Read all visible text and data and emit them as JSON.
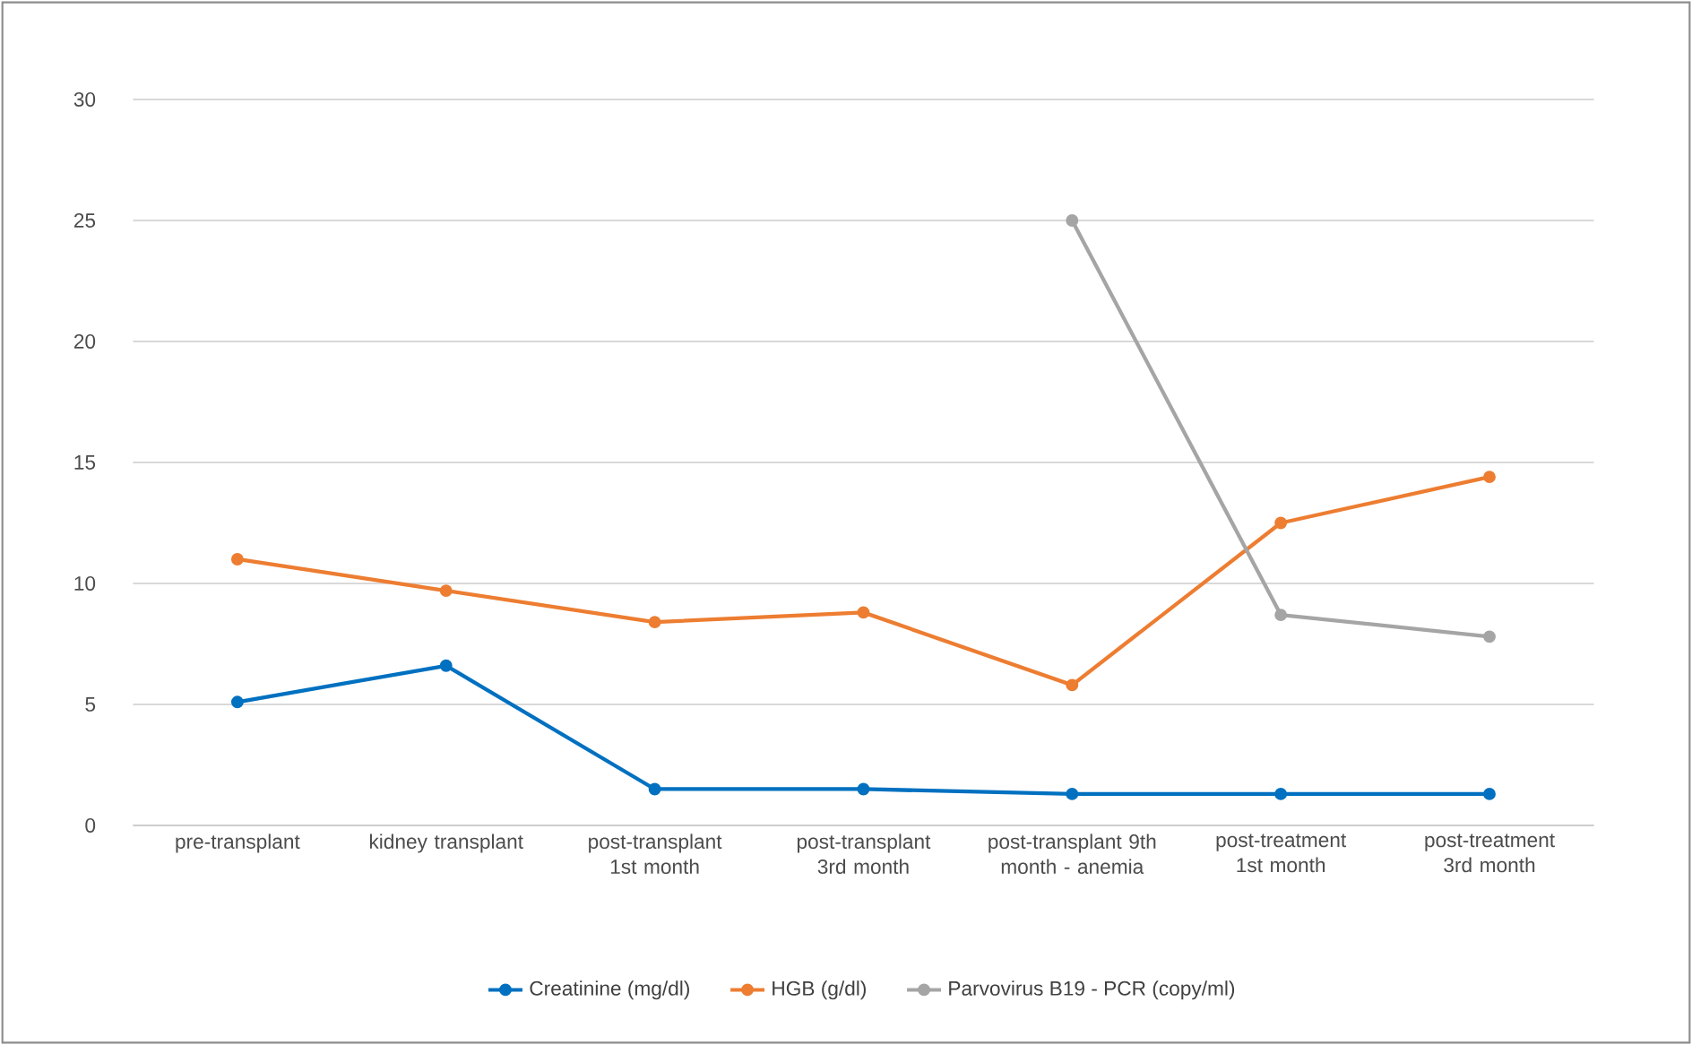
{
  "chart_data": {
    "type": "line",
    "categories": [
      "pre-transplant",
      "kidney transplant",
      "post-transplant 1st month",
      "post-transplant 3rd month",
      "post-transplant 9th month - anemia",
      "post-treatment 1st month",
      "post-treatment 3rd month"
    ],
    "series": [
      {
        "name": "Creatinine (mg/dl)",
        "color": "#0070c0",
        "values": [
          5.1,
          6.6,
          1.5,
          1.5,
          1.3,
          1.3,
          1.3
        ]
      },
      {
        "name": "HGB (g/dl)",
        "color": "#ed7d31",
        "values": [
          11.0,
          9.7,
          8.4,
          8.8,
          5.8,
          12.5,
          14.4
        ]
      },
      {
        "name": "Parvovirus B19 - PCR (copy/ml)",
        "color": "#a5a5a5",
        "values": [
          null,
          null,
          null,
          null,
          25.0,
          8.7,
          7.8
        ]
      }
    ],
    "ylim": [
      0,
      30
    ],
    "yticks": [
      0,
      5,
      10,
      15,
      20,
      25,
      30
    ],
    "grid": "y",
    "legend": "bottom",
    "marker": "circle",
    "line_style": "solid"
  }
}
